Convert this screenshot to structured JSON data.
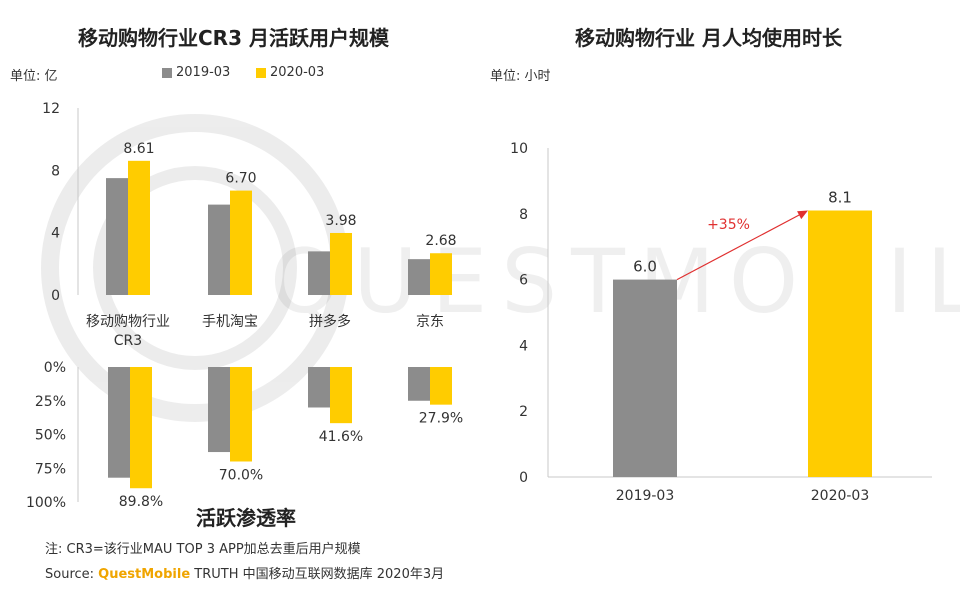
{
  "watermark": "QUESTMOBILE",
  "left": {
    "title": "移动购物行业CR3 月活跃用户规模",
    "unit": "单位: 亿",
    "legend": [
      "2019-03",
      "2020-03"
    ],
    "penetration_title": "活跃渗透率"
  },
  "right": {
    "title": "移动购物行业 月人均使用时长",
    "unit": "单位:  小时",
    "growth_label": "+35%"
  },
  "footer": {
    "note": "注:  CR3=该行业MAU TOP 3 APP加总去重后用户规模",
    "source_prefix": "Source:",
    "source_brand": "QuestMobile",
    "source_rest": "TRUTH 中国移动互联网数据库 2020年3月"
  },
  "colors": {
    "s2019": "#8c8c8c",
    "s2020": "#ffcc00",
    "arrow": "#e03030"
  },
  "chart_data": [
    {
      "type": "bar",
      "title": "移动购物行业CR3 月活跃用户规模",
      "ylabel": "单位: 亿",
      "categories": [
        "移动购物行业CR3",
        "手机淘宝",
        "拼多多",
        "京东"
      ],
      "series": [
        {
          "name": "2019-03",
          "values": [
            7.5,
            5.8,
            2.8,
            2.3
          ]
        },
        {
          "name": "2020-03",
          "values": [
            8.61,
            6.7,
            3.98,
            2.68
          ]
        }
      ],
      "data_labels": [
        "8.61",
        "6.70",
        "3.98",
        "2.68"
      ],
      "ylim": [
        0,
        12
      ],
      "yticks": [
        "0",
        "4",
        "8",
        "12"
      ],
      "legend": "top"
    },
    {
      "type": "bar",
      "title": "活跃渗透率",
      "categories": [
        "移动购物行业CR3",
        "手机淘宝",
        "拼多多",
        "京东"
      ],
      "series": [
        {
          "name": "2019-03",
          "values": [
            82,
            63,
            30,
            25
          ]
        },
        {
          "name": "2020-03",
          "values": [
            89.8,
            70.0,
            41.6,
            27.9
          ]
        }
      ],
      "data_labels": [
        "89.8%",
        "70.0%",
        "41.6%",
        "27.9%"
      ],
      "ylim": [
        0,
        100
      ],
      "yticks": [
        "0%",
        "25%",
        "50%",
        "75%",
        "100%"
      ],
      "inverted": true
    },
    {
      "type": "bar",
      "title": "移动购物行业 月人均使用时长",
      "ylabel": "单位:  小时",
      "categories": [
        "2019-03",
        "2020-03"
      ],
      "values": [
        6.0,
        8.1
      ],
      "data_labels": [
        "6.0",
        "8.1"
      ],
      "ylim": [
        0,
        10
      ],
      "yticks": [
        "0",
        "2",
        "4",
        "6",
        "8",
        "10"
      ],
      "annotation": "+35%"
    }
  ]
}
